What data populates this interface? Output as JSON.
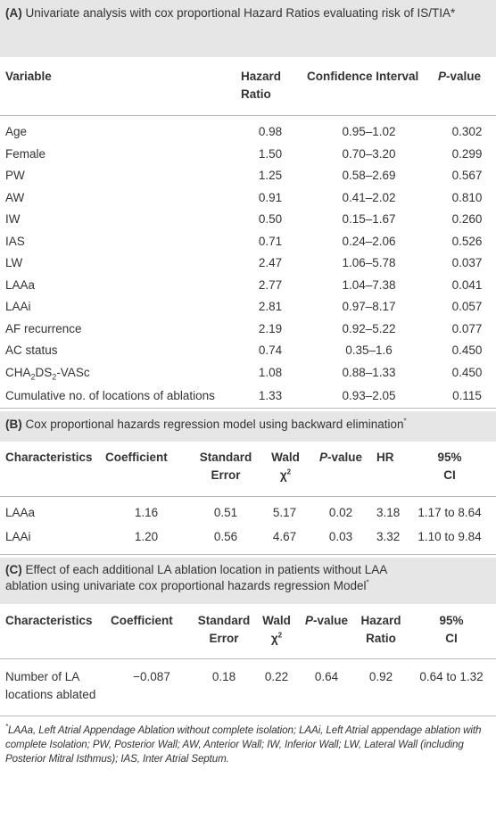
{
  "sectionA": {
    "label": "(A)",
    "title": "Univariate analysis with cox proportional Hazard Ratios evaluating risk of IS/TIA",
    "title_mark": "*",
    "headers": {
      "variable": "Variable",
      "hr_line1": "Hazard",
      "hr_line2": "Ratio",
      "ci": "Confidence Interval",
      "p_italic": "P",
      "p_rest": "-value"
    },
    "rows": [
      {
        "variable": "Age",
        "hr": "0.98",
        "ci": "0.95–1.02",
        "p": "0.302"
      },
      {
        "variable": "Female",
        "hr": "1.50",
        "ci": "0.70–3.20",
        "p": "0.299"
      },
      {
        "variable": "PW",
        "hr": "1.25",
        "ci": "0.58–2.69",
        "p": "0.567"
      },
      {
        "variable": "AW",
        "hr": "0.91",
        "ci": "0.41–2.02",
        "p": "0.810"
      },
      {
        "variable": "IW",
        "hr": "0.50",
        "ci": "0.15–1.67",
        "p": "0.260"
      },
      {
        "variable": "IAS",
        "hr": "0.71",
        "ci": "0.24–2.06",
        "p": "0.526"
      },
      {
        "variable": "LW",
        "hr": "2.47",
        "ci": "1.06–5.78",
        "p": "0.037"
      },
      {
        "variable": "LAAa",
        "hr": "2.77",
        "ci": "1.04–7.38",
        "p": "0.041"
      },
      {
        "variable": "LAAi",
        "hr": "2.81",
        "ci": "0.97–8.17",
        "p": "0.057"
      },
      {
        "variable": "AF recurrence",
        "hr": "2.19",
        "ci": "0.92–5.22",
        "p": "0.077"
      },
      {
        "variable": "AC status",
        "hr": "0.74",
        "ci": "0.35–1.6",
        "p": "0.450"
      }
    ],
    "chads_row": {
      "pre": "CHA",
      "sub1": "2",
      "mid": "DS",
      "sub2": "2",
      "post": "-VASc",
      "hr": "1.08",
      "ci": "0.88–1.33",
      "p": "0.450"
    },
    "last_row": {
      "variable": "Cumulative no. of locations of ablations",
      "hr": "1.33",
      "ci": "0.93–2.05",
      "p": "0.115"
    }
  },
  "sectionB": {
    "label": "(B)",
    "title": "Cox proportional hazards regression model using backward elimination",
    "title_mark": "*",
    "headers": {
      "char": "Characteristics",
      "coef": "Coefficient",
      "se_line1": "Standard",
      "se_line2": "Error",
      "wald_line1": "Wald",
      "wald_line2": "χ",
      "wald_sup": "2",
      "p_italic": "P",
      "p_rest": "-value",
      "hr": "HR",
      "ci_line1": "95%",
      "ci_line2": "CI"
    },
    "rows": [
      {
        "char": "LAAa",
        "coef": "1.16",
        "se": "0.51",
        "wald": "5.17",
        "p": "0.02",
        "hr": "3.18",
        "ci": "1.17 to 8.64"
      },
      {
        "char": "LAAi",
        "coef": "1.20",
        "se": "0.56",
        "wald": "4.67",
        "p": "0.03",
        "hr": "3.32",
        "ci": "1.10 to 9.84"
      }
    ]
  },
  "sectionC": {
    "label": "(C)",
    "title_line1": "Effect of each additional LA ablation location in patients without LAA",
    "title_line2": "ablation using univariate cox proportional hazards regression Model",
    "title_mark": "*",
    "headers": {
      "char": "Characteristics",
      "coef": "Coefficient",
      "se_line1": "Standard",
      "se_line2": "Error",
      "wald_line1": "Wald",
      "wald_line2": "χ",
      "wald_sup": "2",
      "p_italic": "P",
      "p_rest": "-value",
      "hr_line1": "Hazard",
      "hr_line2": "Ratio",
      "ci_line1": "95%",
      "ci_line2": "CI"
    },
    "row": {
      "char_line1": "Number of LA",
      "char_line2": "locations ablated",
      "coef": "−0.087",
      "se": "0.18",
      "wald": "0.22",
      "p": "0.64",
      "hr": "0.92",
      "ci": "0.64 to 1.32"
    }
  },
  "footnote": {
    "mark": "*",
    "text": "LAAa, Left Atrial Appendage Ablation without complete isolation; LAAi, Left Atrial appendage ablation with complete Isolation; PW, Posterior Wall; AW, Anterior Wall; IW, Inferior Wall; LW, Lateral Wall (including Posterior Mitral Isthmus); IAS, Inter Atrial Septum."
  }
}
